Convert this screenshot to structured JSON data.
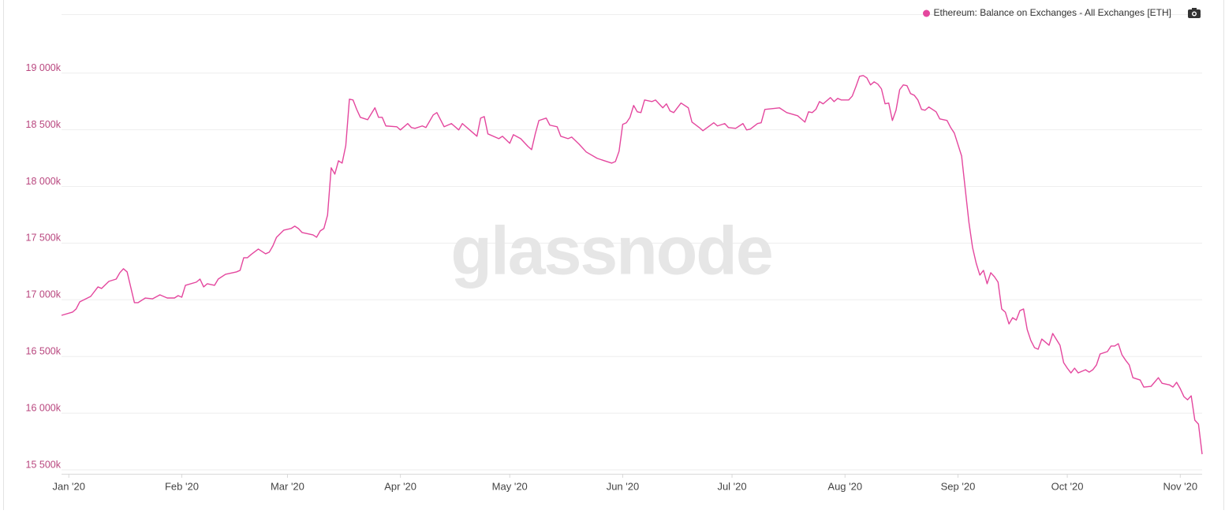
{
  "chart_data": {
    "type": "line",
    "watermark": "glassnode",
    "x": [
      -2,
      1,
      2,
      3,
      6,
      8,
      9,
      11,
      13,
      14,
      15,
      16,
      18,
      19,
      21,
      23,
      25,
      27,
      29,
      30,
      31,
      32,
      35,
      36,
      37,
      38,
      40,
      41,
      43,
      46,
      47,
      48,
      49,
      50,
      52,
      54,
      55,
      56,
      57,
      59,
      61,
      62,
      63,
      64,
      67,
      68,
      69,
      70,
      71,
      72,
      73,
      74,
      75,
      76,
      77,
      78,
      79,
      80,
      82,
      84,
      85,
      86,
      87,
      90,
      91,
      93,
      94,
      95,
      97,
      98,
      100,
      101,
      103,
      105,
      107,
      108,
      110,
      112,
      113,
      114,
      115,
      118,
      119,
      121,
      122,
      124,
      126,
      127,
      128,
      129,
      131,
      132,
      134,
      135,
      137,
      138,
      140,
      142,
      145,
      147,
      149,
      150,
      151,
      152,
      153,
      154,
      155,
      156,
      157,
      158,
      160,
      161,
      163,
      164,
      165,
      166,
      168,
      170,
      171,
      173,
      174,
      177,
      178,
      180,
      181,
      183,
      184,
      185,
      186,
      187,
      189,
      190,
      191,
      195,
      197,
      200,
      202,
      203,
      204,
      205,
      206,
      207,
      209,
      210,
      211,
      212,
      214,
      215,
      216,
      217,
      218,
      219,
      220,
      221,
      222,
      223,
      224,
      225,
      226,
      227,
      228,
      229,
      230,
      231,
      232,
      233,
      234,
      235,
      236,
      238,
      239,
      241,
      242,
      243,
      245,
      246,
      247,
      248,
      249,
      250,
      251,
      252,
      253,
      254,
      255,
      256,
      257,
      258,
      259,
      260,
      261,
      262,
      263,
      264,
      265,
      266,
      267,
      269,
      270,
      272,
      273,
      274,
      275,
      276,
      277,
      279,
      280,
      281,
      282,
      283,
      285,
      286,
      287,
      288,
      289,
      290,
      291,
      292,
      294,
      295,
      297,
      299,
      300,
      302,
      303,
      304,
      305,
      306,
      307,
      308,
      309,
      310,
      311
    ],
    "series": [
      {
        "name": "Ethereum: Balance on Exchanges - All Exchanges [ETH]",
        "color": "#e4479e",
        "values": [
          16863,
          16891,
          16919,
          16982,
          17030,
          17114,
          17100,
          17163,
          17183,
          17239,
          17274,
          17246,
          16975,
          16975,
          17016,
          17009,
          17044,
          17016,
          17016,
          17037,
          17023,
          17128,
          17156,
          17183,
          17114,
          17142,
          17128,
          17183,
          17225,
          17246,
          17260,
          17371,
          17371,
          17399,
          17448,
          17406,
          17420,
          17476,
          17552,
          17615,
          17629,
          17650,
          17629,
          17594,
          17573,
          17552,
          17608,
          17629,
          17747,
          18165,
          18109,
          18227,
          18206,
          18360,
          18770,
          18763,
          18680,
          18610,
          18589,
          18694,
          18610,
          18610,
          18534,
          18527,
          18499,
          18555,
          18520,
          18513,
          18534,
          18520,
          18631,
          18652,
          18527,
          18555,
          18499,
          18555,
          18499,
          18443,
          18603,
          18617,
          18464,
          18422,
          18443,
          18381,
          18457,
          18422,
          18353,
          18325,
          18464,
          18582,
          18603,
          18541,
          18527,
          18443,
          18422,
          18436,
          18374,
          18304,
          18248,
          18227,
          18206,
          18220,
          18311,
          18548,
          18562,
          18610,
          18715,
          18659,
          18652,
          18763,
          18749,
          18763,
          18694,
          18729,
          18666,
          18652,
          18736,
          18694,
          18568,
          18520,
          18492,
          18562,
          18534,
          18555,
          18520,
          18513,
          18534,
          18555,
          18499,
          18506,
          18555,
          18562,
          18680,
          18694,
          18652,
          18624,
          18568,
          18659,
          18652,
          18680,
          18749,
          18729,
          18784,
          18749,
          18777,
          18763,
          18763,
          18798,
          18882,
          18972,
          18979,
          18958,
          18896,
          18923,
          18903,
          18861,
          18729,
          18736,
          18582,
          18673,
          18854,
          18896,
          18889,
          18819,
          18805,
          18763,
          18680,
          18673,
          18701,
          18659,
          18596,
          18582,
          18520,
          18471,
          18269,
          17977,
          17685,
          17462,
          17323,
          17218,
          17260,
          17142,
          17239,
          17204,
          17156,
          16919,
          16891,
          16787,
          16842,
          16821,
          16905,
          16919,
          16738,
          16641,
          16578,
          16564,
          16654,
          16599,
          16703,
          16599,
          16446,
          16397,
          16355,
          16397,
          16355,
          16383,
          16362,
          16383,
          16425,
          16522,
          16543,
          16592,
          16592,
          16613,
          16515,
          16467,
          16425,
          16313,
          16292,
          16230,
          16237,
          16313,
          16264,
          16250,
          16230,
          16272,
          16216,
          16146,
          16118,
          16153,
          15938,
          15903,
          15638
        ]
      }
    ],
    "xlim": [
      -2,
      311
    ],
    "xticks": [
      {
        "value": 0,
        "label": "Jan '20"
      },
      {
        "value": 31,
        "label": "Feb '20"
      },
      {
        "value": 60,
        "label": "Mar '20"
      },
      {
        "value": 91,
        "label": "Apr '20"
      },
      {
        "value": 121,
        "label": "May '20"
      },
      {
        "value": 152,
        "label": "Jun '20"
      },
      {
        "value": 182,
        "label": "Jul '20"
      },
      {
        "value": 213,
        "label": "Aug '20"
      },
      {
        "value": 244,
        "label": "Sep '20"
      },
      {
        "value": 274,
        "label": "Oct '20"
      },
      {
        "value": 305,
        "label": "Nov '20"
      }
    ],
    "ylim": [
      15465,
      19520
    ],
    "yticks": [
      {
        "value": 15500,
        "label": "15 500k"
      },
      {
        "value": 16000,
        "label": "16 000k"
      },
      {
        "value": 16500,
        "label": "16 500k"
      },
      {
        "value": 17000,
        "label": "17 000k"
      },
      {
        "value": 17500,
        "label": "17 500k"
      },
      {
        "value": 18000,
        "label": "18 000k"
      },
      {
        "value": 18500,
        "label": "18 500k"
      },
      {
        "value": 19000,
        "label": "19 000k"
      }
    ],
    "grid": true,
    "legend": "top-right"
  }
}
